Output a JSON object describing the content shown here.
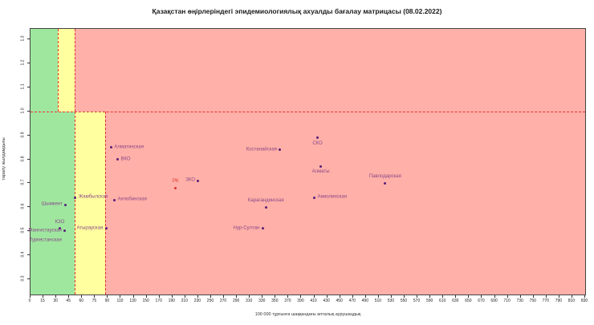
{
  "title": "Қазақстан өңірлеріндегі эпидемиологиялық ахуалды бағалау матрицасы  (08.02.2022)",
  "chart_data": {
    "type": "scatter",
    "title": "Қазақстан өңірлеріндегі эпидемиологиялық ахуалды бағалау матрицасы  (08.02.2022)",
    "xlabel": "100 000 тұрғынға шаққандағы апталық аурушаңдық",
    "ylabel": "таралу жылдамдығы",
    "x_range": [
      0,
      830
    ],
    "y_range": [
      0.235,
      1.345
    ],
    "grid": false,
    "legend": "none",
    "x_ticks": [
      0,
      15,
      30,
      45,
      60,
      75,
      90,
      110,
      130,
      150,
      170,
      190,
      210,
      230,
      250,
      270,
      290,
      310,
      330,
      350,
      370,
      390,
      410,
      430,
      450,
      470,
      490,
      510,
      530,
      550,
      570,
      590,
      610,
      630,
      650,
      670,
      690,
      710,
      730,
      750,
      770,
      790,
      810,
      830
    ],
    "y_ticks": [
      0.3,
      0.4,
      0.5,
      0.6,
      0.7,
      0.8,
      0.9,
      1.0,
      1.1,
      1.2,
      1.3
    ],
    "threshold_rt": 1.0,
    "zones": {
      "upper": [
        {
          "name": "green",
          "x0": 0,
          "x1": 32
        },
        {
          "name": "yellow",
          "x0": 32,
          "x1": 51
        },
        {
          "name": "red",
          "x0": 51,
          "x1": 830
        }
      ],
      "lower": [
        {
          "name": "green",
          "x0": 0,
          "x1": 51
        },
        {
          "name": "yellow",
          "x0": 51,
          "x1": 87
        },
        {
          "name": "red",
          "x0": 87,
          "x1": 830
        }
      ]
    },
    "points": [
      {
        "label": "Шымкент",
        "x": 41,
        "rt": 0.61,
        "label_pos": "left",
        "marker": true
      },
      {
        "label": "КЗО",
        "x": 34,
        "rt": 0.51,
        "label_pos": "above",
        "marker": true
      },
      {
        "label": "Мангистауская",
        "x": 40,
        "rt": 0.5,
        "label_pos": "left",
        "marker": true
      },
      {
        "label": "Туркестанская",
        "x": 40,
        "rt": 0.46,
        "label_pos": "left",
        "marker": false
      },
      {
        "label": "Жамбылская",
        "x": 52,
        "rt": 0.64,
        "label_pos": "right",
        "marker": true
      },
      {
        "label": "Атырауская",
        "x": 88,
        "rt": 0.51,
        "label_pos": "left",
        "marker": true
      },
      {
        "label": "Алматинская",
        "x": 95,
        "rt": 0.85,
        "label_pos": "right",
        "marker": true
      },
      {
        "label": "ВКО",
        "x": 105,
        "rt": 0.8,
        "label_pos": "right",
        "marker": true
      },
      {
        "label": "Актюбинская",
        "x": 100,
        "rt": 0.63,
        "label_pos": "right",
        "marker": true
      },
      {
        "label": "РК",
        "x": 195,
        "rt": 0.68,
        "label_pos": "above",
        "marker": true,
        "highlight": true
      },
      {
        "label": "ЗКО",
        "x": 230,
        "rt": 0.71,
        "label_pos": "left",
        "marker": true
      },
      {
        "label": "Нур-Султан",
        "x": 330,
        "rt": 0.51,
        "label_pos": "left",
        "marker": true
      },
      {
        "label": "Карагандинская",
        "x": 335,
        "rt": 0.6,
        "label_pos": "above",
        "marker": true
      },
      {
        "label": "Костанайская",
        "x": 357,
        "rt": 0.84,
        "label_pos": "left",
        "marker": true
      },
      {
        "label": "Акмолинская",
        "x": 410,
        "rt": 0.64,
        "label_pos": "right",
        "marker": true
      },
      {
        "label": "СКО",
        "x": 415,
        "rt": 0.89,
        "label_pos": "below",
        "marker": true
      },
      {
        "label": "Алматы",
        "x": 420,
        "rt": 0.77,
        "label_pos": "below",
        "marker": true
      },
      {
        "label": "Павлодарская",
        "x": 520,
        "rt": 0.7,
        "label_pos": "above",
        "marker": true
      }
    ],
    "colors": {
      "zone_green": "#9fe79f",
      "zone_yellow": "#ffffa0",
      "zone_red": "#ffb0a8",
      "dashed_line": "#e63333",
      "point": "#5a1f7a",
      "point_label": "#8b4789",
      "highlight": "#dd3333"
    }
  }
}
